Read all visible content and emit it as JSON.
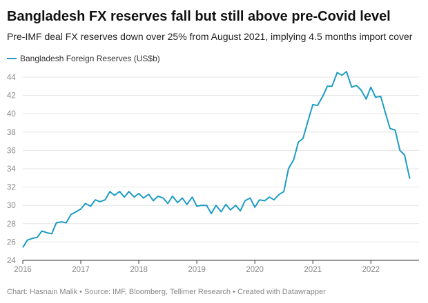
{
  "chart_data": {
    "type": "line",
    "title": "Bangladesh FX reserves fall but still above pre-Covid level",
    "subtitle": "Pre-IMF deal FX reserves down over 25% from August 2021, implying 4.5 months import cover",
    "source": "Chart: Hasnain Malik • Source: IMF, Bloomberg, Tellimer Research • Created with Datawrapper",
    "x": [
      2016,
      2016.08,
      2016.17,
      2016.25,
      2016.33,
      2016.42,
      2016.5,
      2016.58,
      2016.67,
      2016.75,
      2016.83,
      2016.92,
      2017,
      2017.08,
      2017.17,
      2017.25,
      2017.33,
      2017.42,
      2017.5,
      2017.58,
      2017.67,
      2017.75,
      2017.83,
      2017.92,
      2018,
      2018.08,
      2018.17,
      2018.25,
      2018.33,
      2018.42,
      2018.5,
      2018.58,
      2018.67,
      2018.75,
      2018.83,
      2018.92,
      2019,
      2019.08,
      2019.17,
      2019.25,
      2019.33,
      2019.42,
      2019.5,
      2019.58,
      2019.67,
      2019.75,
      2019.83,
      2019.92,
      2020,
      2020.08,
      2020.17,
      2020.25,
      2020.33,
      2020.42,
      2020.5,
      2020.58,
      2020.67,
      2020.75,
      2020.83,
      2020.92,
      2021,
      2021.08,
      2021.17,
      2021.25,
      2021.33,
      2021.42,
      2021.5,
      2021.58,
      2021.67,
      2021.75,
      2021.83,
      2021.92,
      2022,
      2022.08,
      2022.17,
      2022.25,
      2022.33,
      2022.42,
      2022.5,
      2022.58,
      2022.67
    ],
    "series": [
      {
        "name": "Bangladesh Foreign Reserves (US$b)",
        "color": "#1d9bc4",
        "values": [
          25.4,
          26.2,
          26.4,
          26.5,
          27.2,
          27.0,
          26.9,
          28.1,
          28.2,
          28.1,
          29.0,
          29.3,
          29.6,
          30.2,
          29.9,
          30.6,
          30.4,
          30.6,
          31.5,
          31.1,
          31.5,
          30.9,
          31.5,
          30.9,
          31.3,
          30.8,
          31.2,
          30.5,
          31.0,
          30.8,
          30.2,
          31.0,
          30.3,
          30.8,
          30.1,
          30.9,
          29.9,
          30.0,
          30.0,
          29.1,
          30.0,
          29.3,
          30.1,
          29.5,
          30.0,
          29.4,
          30.5,
          30.8,
          29.8,
          30.6,
          30.5,
          30.9,
          30.6,
          31.2,
          31.5,
          34.0,
          35.0,
          36.9,
          37.3,
          39.3,
          41.0,
          40.9,
          41.9,
          43.0,
          43.0,
          44.5,
          44.2,
          44.6,
          42.9,
          43.1,
          42.6,
          41.6,
          42.9,
          41.8,
          41.9,
          40.1,
          38.4,
          38.2,
          36.0,
          35.5,
          32.9
        ]
      }
    ],
    "xlim": [
      2016,
      2022.83
    ],
    "xticks": [
      2016,
      2017,
      2018,
      2019,
      2020,
      2021,
      2022
    ],
    "ylim": [
      24,
      44.6
    ],
    "yticks": [
      24,
      26,
      28,
      30,
      32,
      34,
      36,
      38,
      40,
      42,
      44
    ],
    "grid": true
  }
}
